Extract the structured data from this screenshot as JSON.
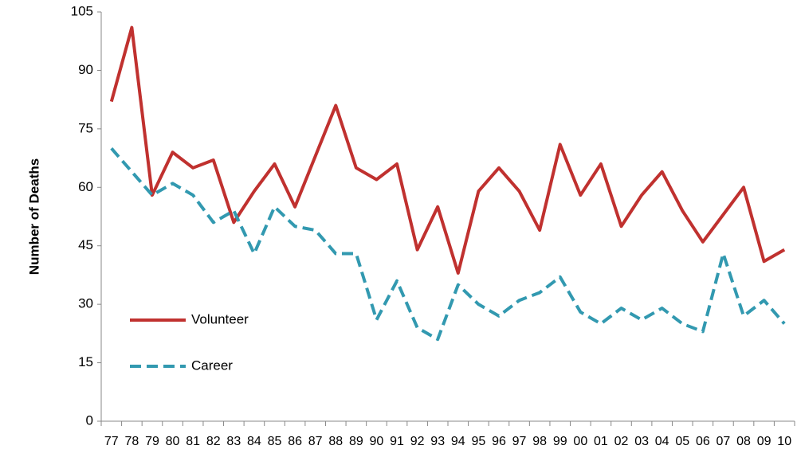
{
  "chart_data": {
    "type": "line",
    "y_label": "Number of Deaths",
    "categories": [
      "77",
      "78",
      "79",
      "80",
      "81",
      "82",
      "83",
      "84",
      "85",
      "86",
      "87",
      "88",
      "89",
      "90",
      "91",
      "92",
      "93",
      "94",
      "95",
      "96",
      "97",
      "98",
      "99",
      "00",
      "01",
      "02",
      "03",
      "04",
      "05",
      "06",
      "07",
      "08",
      "09",
      "10"
    ],
    "series": [
      {
        "name": "Volunteer",
        "color": "#c0312f",
        "dash": false,
        "values": [
          82,
          101,
          58,
          69,
          65,
          67,
          51,
          59,
          66,
          55,
          68,
          81,
          65,
          62,
          66,
          44,
          55,
          38,
          59,
          65,
          59,
          49,
          71,
          58,
          66,
          50,
          58,
          64,
          54,
          46,
          53,
          60,
          41,
          44
        ]
      },
      {
        "name": "Career",
        "color": "#3299b0",
        "dash": true,
        "values": [
          70,
          64,
          58,
          61,
          58,
          51,
          54,
          43,
          55,
          50,
          49,
          43,
          43,
          26,
          36,
          24,
          21,
          35,
          30,
          27,
          31,
          33,
          37,
          28,
          25,
          29,
          26,
          29,
          25,
          23,
          43,
          27,
          31,
          25
        ]
      }
    ],
    "ylim": [
      0,
      105
    ],
    "yticks": [
      0,
      15,
      30,
      45,
      60,
      75,
      90,
      105
    ],
    "grid": false,
    "legend": "lower left"
  }
}
